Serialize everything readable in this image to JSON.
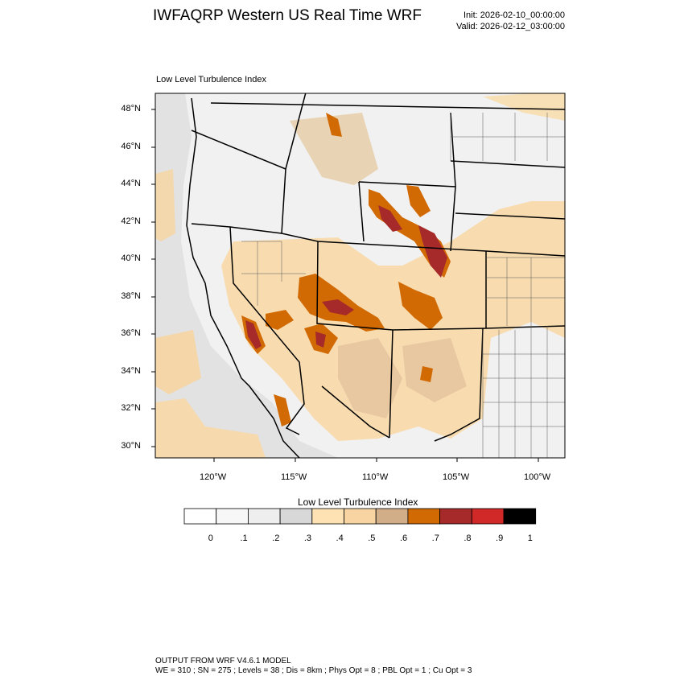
{
  "header": {
    "title": "IWFAQRP Western US Real Time WRF",
    "init": "Init: 2026-02-10_00:00:00",
    "valid": "Valid: 2026-02-12_03:00:00"
  },
  "map": {
    "subtitle": "Low Level Turbulence Index",
    "lat_labels": [
      "48°N",
      "46°N",
      "44°N",
      "42°N",
      "40°N",
      "38°N",
      "36°N",
      "34°N",
      "32°N",
      "30°N"
    ],
    "lon_labels": [
      "120°W",
      "115°W",
      "110°W",
      "105°W",
      "100°W"
    ]
  },
  "colorbar": {
    "title": "Low Level Turbulence Index",
    "labels": [
      "0",
      ".1",
      ".2",
      ".3",
      ".4",
      ".5",
      ".6",
      ".7",
      ".8",
      ".9",
      "1"
    ],
    "colors": [
      "#ffffff",
      "#f7f7f7",
      "#eeeeee",
      "#d8d8d8",
      "#ffe2b4",
      "#f8d4a2",
      "#d2ae88",
      "#d26a04",
      "#a62a2a",
      "#d12828",
      "#000000"
    ]
  },
  "footer": {
    "line1": "OUTPUT FROM WRF V4.6.1 MODEL",
    "line2": "WE = 310 ; SN = 275 ; Levels = 38 ; Dis = 8km ; Phys Opt = 8 ; PBL Opt = 1 ; Cu Opt = 3"
  }
}
